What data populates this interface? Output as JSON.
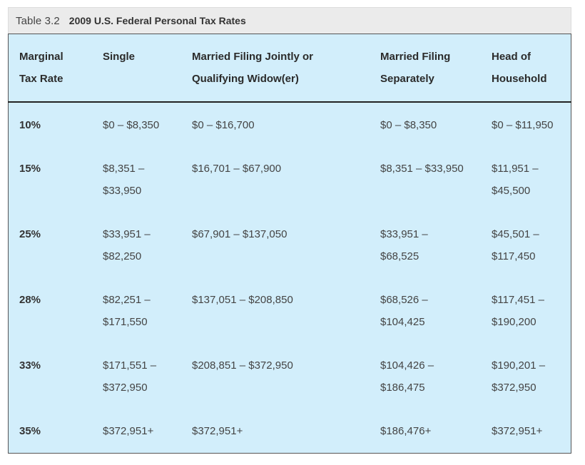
{
  "caption": {
    "label": "Table 3.2",
    "title": "2009 U.S. Federal Personal Tax Rates"
  },
  "headers": [
    [
      "Marginal",
      "Tax Rate"
    ],
    [
      "Single"
    ],
    [
      "Married Filing Jointly or",
      "Qualifying Widow(er)"
    ],
    [
      "Married Filing",
      "Separately"
    ],
    [
      "Head of",
      "Household"
    ]
  ],
  "rows": [
    [
      [
        "10%"
      ],
      [
        "$0 – $8,350"
      ],
      [
        "$0 – $16,700"
      ],
      [
        "$0 – $8,350"
      ],
      [
        "$0 – $11,950"
      ]
    ],
    [
      [
        "15%"
      ],
      [
        "$8,351 –",
        "$33,950"
      ],
      [
        "$16,701 – $67,900"
      ],
      [
        "$8,351 – $33,950"
      ],
      [
        "$11,951 –",
        "$45,500"
      ]
    ],
    [
      [
        "25%"
      ],
      [
        "$33,951 –",
        "$82,250"
      ],
      [
        "$67,901 – $137,050"
      ],
      [
        "$33,951 –",
        "$68,525"
      ],
      [
        "$45,501 –",
        "$117,450"
      ]
    ],
    [
      [
        "28%"
      ],
      [
        "$82,251 –",
        "$171,550"
      ],
      [
        "$137,051 – $208,850"
      ],
      [
        "$68,526 –",
        "$104,425"
      ],
      [
        "$117,451 –",
        "$190,200"
      ]
    ],
    [
      [
        "33%"
      ],
      [
        "$171,551 –",
        "$372,950"
      ],
      [
        "$208,851 – $372,950"
      ],
      [
        "$104,426 –",
        "$186,475"
      ],
      [
        "$190,201 –",
        "$372,950"
      ]
    ],
    [
      [
        "35%"
      ],
      [
        "$372,951+"
      ],
      [
        "$372,951+"
      ],
      [
        "$186,476+"
      ],
      [
        "$372,951+"
      ]
    ]
  ],
  "colors": {
    "table_background": "#d2eefb",
    "caption_background": "#ebebeb",
    "border": "#555555"
  }
}
